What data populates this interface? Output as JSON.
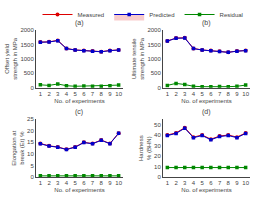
{
  "chart_data": [
    {
      "type": "line",
      "title": "(a)",
      "xlabel": "No. of experiments",
      "ylabel": "Offset yield strength in MPa",
      "x": [
        1,
        2,
        3,
        4,
        5,
        6,
        7,
        8,
        9,
        10
      ],
      "xlim": [
        0.5,
        10.5
      ],
      "xticks": [
        1,
        2,
        3,
        4,
        5,
        6,
        7,
        8,
        9,
        10
      ],
      "ylim": [
        0,
        2000
      ],
      "yticks": [
        0,
        500,
        1000,
        1500,
        2000
      ],
      "grid": false,
      "legend": "top",
      "series": [
        {
          "name": "Measured",
          "color": "#dd0000",
          "marker": "circle",
          "values": [
            1580,
            1590,
            1640,
            1360,
            1310,
            1290,
            1270,
            1250,
            1290,
            1310
          ]
        },
        {
          "name": "Predicted",
          "color": "#0000cc",
          "marker": "square",
          "values": [
            1575,
            1585,
            1630,
            1355,
            1305,
            1285,
            1265,
            1245,
            1285,
            1305
          ]
        },
        {
          "name": "Residual",
          "color": "#008800",
          "marker": "square",
          "values": [
            100,
            80,
            130,
            70,
            50,
            60,
            50,
            55,
            70,
            90
          ]
        }
      ]
    },
    {
      "type": "line",
      "title": "(b)",
      "xlabel": "No. of experiments",
      "ylabel": "Ultimate tensile strength in MPa",
      "x": [
        1,
        2,
        3,
        4,
        5,
        6,
        7,
        8,
        9,
        10
      ],
      "xlim": [
        0.5,
        10.5
      ],
      "xticks": [
        1,
        2,
        3,
        4,
        5,
        6,
        7,
        8,
        9,
        10
      ],
      "ylim": [
        0,
        2000
      ],
      "yticks": [
        0,
        500,
        1000,
        1500,
        2000
      ],
      "grid": false,
      "legend": "top",
      "series": [
        {
          "name": "Measured",
          "color": "#dd0000",
          "marker": "circle",
          "values": [
            1620,
            1720,
            1730,
            1360,
            1310,
            1290,
            1260,
            1230,
            1270,
            1290
          ]
        },
        {
          "name": "Predicted",
          "color": "#0000cc",
          "marker": "square",
          "values": [
            1615,
            1715,
            1720,
            1355,
            1305,
            1285,
            1255,
            1225,
            1265,
            1285
          ]
        },
        {
          "name": "Residual",
          "color": "#008800",
          "marker": "square",
          "values": [
            80,
            150,
            110,
            50,
            35,
            30,
            40,
            35,
            50,
            90
          ]
        }
      ]
    },
    {
      "type": "line",
      "title": "(c)",
      "xlabel": "No. of experiments",
      "ylabel": "Elongation at break (Et) %",
      "x": [
        1,
        2,
        3,
        4,
        5,
        6,
        7,
        8,
        9,
        10
      ],
      "xlim": [
        0.5,
        10.5
      ],
      "xticks": [
        1,
        2,
        3,
        4,
        5,
        6,
        7,
        8,
        9,
        10
      ],
      "ylim": [
        0,
        25
      ],
      "yticks": [
        0,
        5,
        10,
        15,
        20,
        25
      ],
      "grid": false,
      "legend": "top",
      "series": [
        {
          "name": "Measured",
          "color": "#dd0000",
          "marker": "circle",
          "values": [
            14.5,
            13.5,
            13.0,
            12.0,
            13.0,
            15.0,
            14.5,
            16.0,
            14.5,
            19.0
          ]
        },
        {
          "name": "Predicted",
          "color": "#0000cc",
          "marker": "square",
          "values": [
            14.4,
            13.4,
            12.9,
            11.9,
            12.9,
            14.9,
            14.4,
            15.9,
            14.4,
            18.9
          ]
        },
        {
          "name": "Residual",
          "color": "#008800",
          "marker": "square",
          "values": [
            0.5,
            0.5,
            0.5,
            0.5,
            0.5,
            0.5,
            0.5,
            0.5,
            0.5,
            0.5
          ]
        }
      ]
    },
    {
      "type": "line",
      "title": "(d)",
      "xlabel": "No. of experiments",
      "ylabel": "Hardness % (BHN)",
      "x": [
        1,
        2,
        3,
        4,
        5,
        6,
        7,
        8,
        9,
        10
      ],
      "xlim": [
        0.5,
        10.5
      ],
      "xticks": [
        1,
        2,
        3,
        4,
        5,
        6,
        7,
        8,
        9,
        10
      ],
      "ylim": [
        0,
        55
      ],
      "yticks": [
        0,
        10,
        20,
        30,
        40,
        50
      ],
      "grid": false,
      "legend": "top",
      "series": [
        {
          "name": "Measured",
          "color": "#dd0000",
          "marker": "circle",
          "values": [
            40,
            42,
            47,
            38,
            40,
            36,
            39,
            40,
            38,
            42
          ]
        },
        {
          "name": "Predicted",
          "color": "#0000cc",
          "marker": "square",
          "values": [
            39.5,
            41.5,
            46.5,
            37.5,
            39.5,
            35.5,
            38.5,
            39.5,
            37.5,
            41.5
          ]
        },
        {
          "name": "Residual",
          "color": "#008800",
          "marker": "square",
          "values": [
            9,
            9,
            9,
            9,
            9,
            9,
            9,
            9,
            9,
            9
          ]
        }
      ]
    }
  ]
}
